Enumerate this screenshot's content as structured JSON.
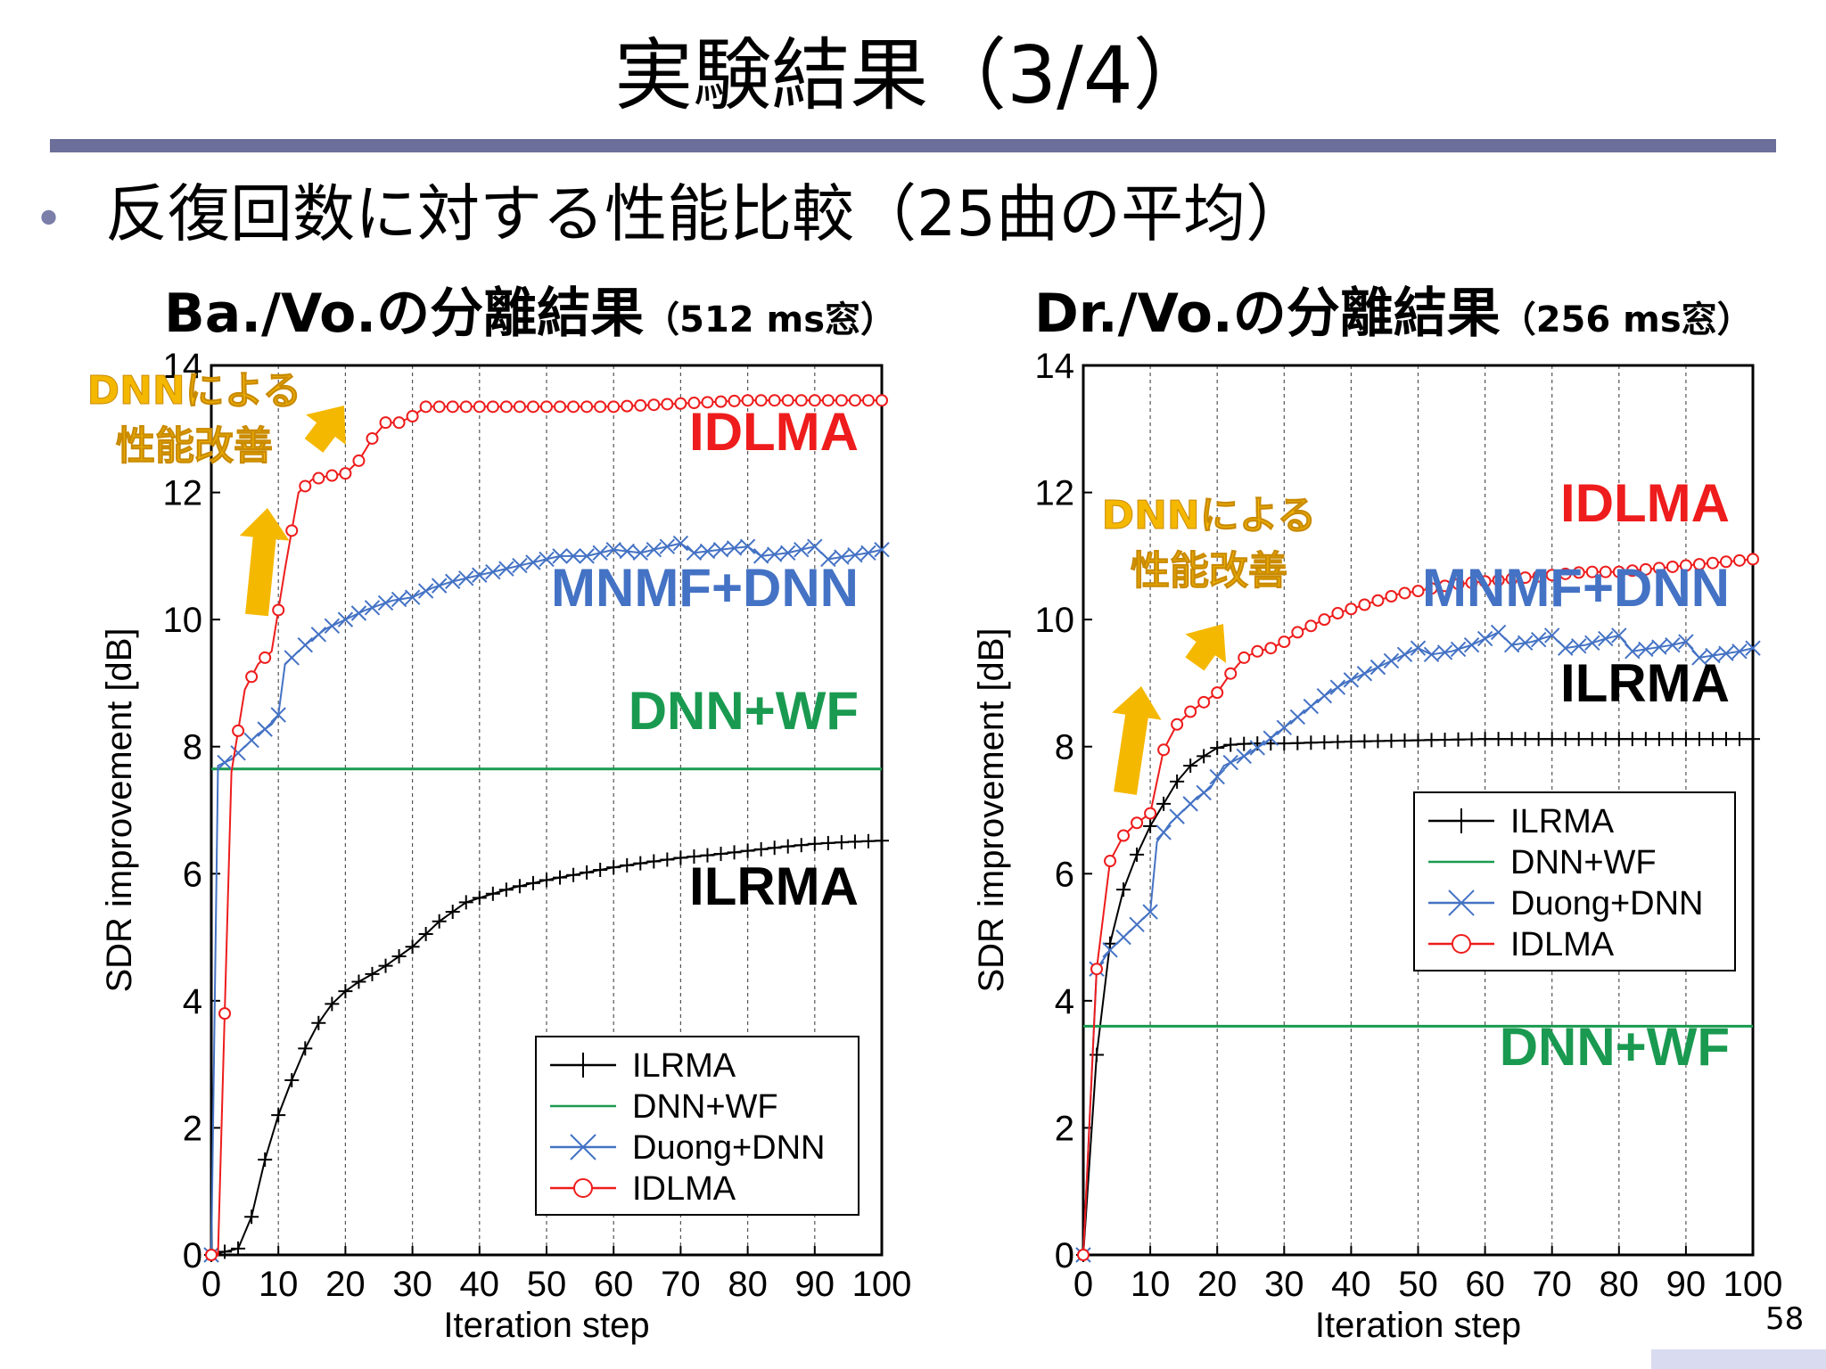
{
  "slide": {
    "title": "実験結果（3/4）",
    "bullet": "反復回数に対する性能比較（25曲の平均）",
    "page_number": "58"
  },
  "colors": {
    "ILRMA": "#000000",
    "DNN+WF": "#1a9a50",
    "Duong+DNN": "#4472c4",
    "IDLMA": "#ee1c1c",
    "annotation": "#f5b800",
    "rule": "#6b6f9a"
  },
  "chart_data": [
    {
      "type": "line",
      "title": "Ba./Vo.の分離結果",
      "subtitle": "（512 ms窓）",
      "xlabel": "Iteration step",
      "ylabel": "SDR improvement [dB]",
      "xlim": [
        0,
        100
      ],
      "ylim": [
        0,
        14
      ],
      "xticks": [
        0,
        10,
        20,
        30,
        40,
        50,
        60,
        70,
        80,
        90,
        100
      ],
      "yticks": [
        0,
        2,
        4,
        6,
        8,
        10,
        12,
        14
      ],
      "grid": "vertical dashed",
      "legend": {
        "position": "bottom-right",
        "entries": [
          "ILRMA",
          "DNN+WF",
          "Duong+DNN",
          "IDLMA"
        ]
      },
      "annotations": {
        "arrow_text": [
          "DNNによる",
          "性能改善"
        ],
        "labels": [
          {
            "text": "IDLMA",
            "series": "IDLMA",
            "x": 83,
            "y": 12.7
          },
          {
            "text": "MNMF+DNN",
            "series": "Duong+DNN",
            "x": 71,
            "y": 10.2
          },
          {
            "text": "DNN+WF",
            "series": "DNN+WF",
            "x": 78,
            "y": 8.3
          },
          {
            "text": "ILRMA",
            "series": "ILRMA",
            "x": 83,
            "y": 5.3
          }
        ]
      },
      "series": [
        {
          "name": "ILRMA",
          "marker": "+",
          "points": [
            [
              0,
              0
            ],
            [
              4,
              0.1
            ],
            [
              6,
              0.6
            ],
            [
              8,
              1.5
            ],
            [
              10,
              2.2
            ],
            [
              12,
              2.75
            ],
            [
              14,
              3.25
            ],
            [
              16,
              3.65
            ],
            [
              18,
              3.95
            ],
            [
              20,
              4.15
            ],
            [
              22,
              4.3
            ],
            [
              24,
              4.42
            ],
            [
              26,
              4.55
            ],
            [
              28,
              4.7
            ],
            [
              30,
              4.85
            ],
            [
              32,
              5.05
            ],
            [
              34,
              5.25
            ],
            [
              36,
              5.4
            ],
            [
              38,
              5.55
            ],
            [
              40,
              5.62
            ],
            [
              45,
              5.78
            ],
            [
              50,
              5.9
            ],
            [
              55,
              6.0
            ],
            [
              60,
              6.1
            ],
            [
              65,
              6.18
            ],
            [
              70,
              6.25
            ],
            [
              75,
              6.3
            ],
            [
              80,
              6.36
            ],
            [
              85,
              6.42
            ],
            [
              90,
              6.47
            ],
            [
              95,
              6.5
            ],
            [
              100,
              6.52
            ]
          ]
        },
        {
          "name": "DNN+WF",
          "marker": "none",
          "points": [
            [
              0,
              7.65
            ],
            [
              100,
              7.65
            ]
          ]
        },
        {
          "name": "Duong+DNN",
          "marker": "x",
          "points": [
            [
              0,
              0
            ],
            [
              1,
              7.7
            ],
            [
              3,
              7.8
            ],
            [
              5,
              8.0
            ],
            [
              7,
              8.2
            ],
            [
              9,
              8.35
            ],
            [
              10,
              8.5
            ],
            [
              11,
              9.3
            ],
            [
              14,
              9.6
            ],
            [
              17,
              9.85
            ],
            [
              20,
              10.0
            ],
            [
              23,
              10.15
            ],
            [
              27,
              10.3
            ],
            [
              30,
              10.35
            ],
            [
              33,
              10.5
            ],
            [
              36,
              10.6
            ],
            [
              40,
              10.7
            ],
            [
              44,
              10.8
            ],
            [
              48,
              10.9
            ],
            [
              52,
              11.0
            ],
            [
              56,
              11.0
            ],
            [
              60,
              11.1
            ],
            [
              64,
              11.05
            ],
            [
              68,
              11.15
            ],
            [
              70,
              11.2
            ],
            [
              72,
              11.05
            ],
            [
              76,
              11.1
            ],
            [
              80,
              11.15
            ],
            [
              82,
              11.0
            ],
            [
              86,
              11.05
            ],
            [
              88,
              11.1
            ],
            [
              90,
              11.15
            ],
            [
              92,
              10.95
            ],
            [
              95,
              11.0
            ],
            [
              98,
              11.05
            ],
            [
              100,
              11.1
            ]
          ]
        },
        {
          "name": "IDLMA",
          "marker": "o",
          "points": [
            [
              0,
              0
            ],
            [
              1,
              0
            ],
            [
              3,
              7.6
            ],
            [
              5,
              8.9
            ],
            [
              7,
              9.3
            ],
            [
              9,
              9.5
            ],
            [
              11,
              10.8
            ],
            [
              13,
              12.0
            ],
            [
              15,
              12.2
            ],
            [
              17,
              12.25
            ],
            [
              20,
              12.3
            ],
            [
              22,
              12.5
            ],
            [
              24,
              12.85
            ],
            [
              26,
              13.1
            ],
            [
              28,
              13.1
            ],
            [
              30,
              13.2
            ],
            [
              32,
              13.35
            ],
            [
              35,
              13.35
            ],
            [
              40,
              13.35
            ],
            [
              50,
              13.35
            ],
            [
              60,
              13.35
            ],
            [
              70,
              13.4
            ],
            [
              80,
              13.45
            ],
            [
              90,
              13.45
            ],
            [
              100,
              13.45
            ]
          ]
        }
      ]
    },
    {
      "type": "line",
      "title": "Dr./Vo.の分離結果",
      "subtitle": "（256 ms窓）",
      "xlabel": "Iteration step",
      "ylabel": "SDR improvement [dB]",
      "xlim": [
        0,
        100
      ],
      "ylim": [
        0,
        14
      ],
      "xticks": [
        0,
        10,
        20,
        30,
        40,
        50,
        60,
        70,
        80,
        90,
        100
      ],
      "yticks": [
        0,
        2,
        4,
        6,
        8,
        10,
        12,
        14
      ],
      "grid": "vertical dashed",
      "legend": {
        "position": "center-right",
        "entries": [
          "ILRMA",
          "DNN+WF",
          "Duong+DNN",
          "IDLMA"
        ]
      },
      "annotations": {
        "arrow_text": [
          "DNNによる",
          "性能改善"
        ],
        "labels": [
          {
            "text": "IDLMA",
            "series": "IDLMA",
            "x": 82,
            "y": 11.5
          },
          {
            "text": "MNMF+DNN",
            "series": "Duong+DNN",
            "x": 72,
            "y": 10.2
          },
          {
            "text": "ILRMA",
            "series": "ILRMA",
            "x": 82,
            "y": 8.6
          },
          {
            "text": "DNN+WF",
            "series": "DNN+WF",
            "x": 77,
            "y": 3.0
          }
        ]
      },
      "series": [
        {
          "name": "ILRMA",
          "marker": "+",
          "points": [
            [
              0,
              0
            ],
            [
              2,
              3.15
            ],
            [
              4,
              4.9
            ],
            [
              6,
              5.75
            ],
            [
              8,
              6.3
            ],
            [
              10,
              6.75
            ],
            [
              12,
              7.1
            ],
            [
              14,
              7.45
            ],
            [
              16,
              7.7
            ],
            [
              18,
              7.85
            ],
            [
              20,
              7.98
            ],
            [
              22,
              8.03
            ],
            [
              25,
              8.05
            ],
            [
              30,
              8.05
            ],
            [
              40,
              8.08
            ],
            [
              50,
              8.1
            ],
            [
              60,
              8.12
            ],
            [
              70,
              8.12
            ],
            [
              80,
              8.12
            ],
            [
              90,
              8.12
            ],
            [
              100,
              8.12
            ]
          ]
        },
        {
          "name": "DNN+WF",
          "marker": "none",
          "points": [
            [
              0,
              3.6
            ],
            [
              100,
              3.6
            ]
          ]
        },
        {
          "name": "Duong+DNN",
          "marker": "x",
          "points": [
            [
              0,
              0
            ],
            [
              2,
              4.5
            ],
            [
              4,
              4.8
            ],
            [
              6,
              5.0
            ],
            [
              8,
              5.2
            ],
            [
              10,
              5.4
            ],
            [
              11,
              6.5
            ],
            [
              13,
              6.8
            ],
            [
              15,
              7.0
            ],
            [
              17,
              7.2
            ],
            [
              19,
              7.35
            ],
            [
              21,
              7.7
            ],
            [
              24,
              7.85
            ],
            [
              27,
              8.05
            ],
            [
              30,
              8.3
            ],
            [
              33,
              8.55
            ],
            [
              36,
              8.8
            ],
            [
              39,
              9.0
            ],
            [
              42,
              9.15
            ],
            [
              45,
              9.3
            ],
            [
              48,
              9.45
            ],
            [
              50,
              9.55
            ],
            [
              52,
              9.45
            ],
            [
              55,
              9.5
            ],
            [
              58,
              9.6
            ],
            [
              60,
              9.7
            ],
            [
              62,
              9.8
            ],
            [
              64,
              9.6
            ],
            [
              67,
              9.65
            ],
            [
              70,
              9.75
            ],
            [
              72,
              9.55
            ],
            [
              75,
              9.6
            ],
            [
              78,
              9.7
            ],
            [
              80,
              9.75
            ],
            [
              82,
              9.5
            ],
            [
              85,
              9.55
            ],
            [
              88,
              9.6
            ],
            [
              90,
              9.65
            ],
            [
              92,
              9.4
            ],
            [
              95,
              9.45
            ],
            [
              98,
              9.5
            ],
            [
              100,
              9.55
            ]
          ]
        },
        {
          "name": "IDLMA",
          "marker": "o",
          "points": [
            [
              0,
              0
            ],
            [
              2,
              4.5
            ],
            [
              4,
              6.2
            ],
            [
              6,
              6.6
            ],
            [
              8,
              6.8
            ],
            [
              10,
              6.95
            ],
            [
              12,
              7.95
            ],
            [
              14,
              8.35
            ],
            [
              16,
              8.55
            ],
            [
              18,
              8.7
            ],
            [
              20,
              8.85
            ],
            [
              22,
              9.15
            ],
            [
              24,
              9.4
            ],
            [
              26,
              9.5
            ],
            [
              28,
              9.55
            ],
            [
              30,
              9.65
            ],
            [
              32,
              9.8
            ],
            [
              35,
              9.95
            ],
            [
              38,
              10.1
            ],
            [
              41,
              10.2
            ],
            [
              44,
              10.3
            ],
            [
              47,
              10.4
            ],
            [
              50,
              10.45
            ],
            [
              55,
              10.55
            ],
            [
              60,
              10.6
            ],
            [
              65,
              10.65
            ],
            [
              70,
              10.7
            ],
            [
              75,
              10.75
            ],
            [
              80,
              10.75
            ],
            [
              85,
              10.8
            ],
            [
              90,
              10.85
            ],
            [
              95,
              10.9
            ],
            [
              100,
              10.95
            ]
          ]
        }
      ]
    }
  ]
}
